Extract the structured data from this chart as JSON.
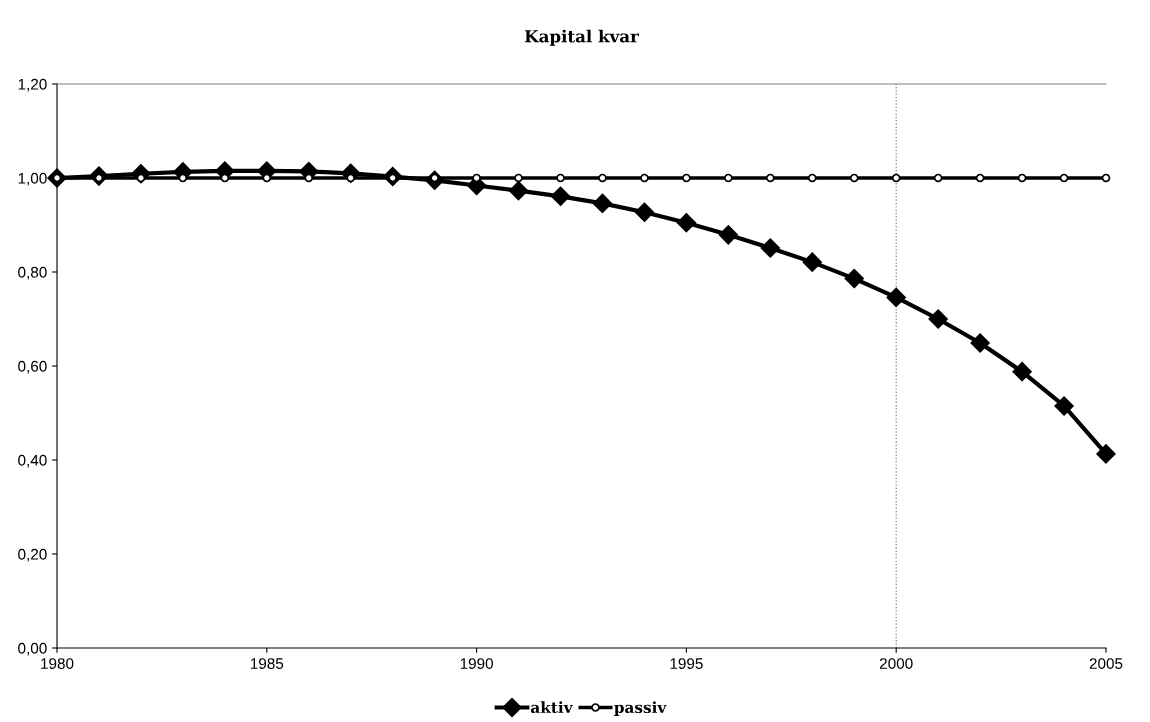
{
  "chart_data": {
    "type": "line",
    "title": "Kapital kvar",
    "x": [
      1980,
      1981,
      1982,
      1983,
      1984,
      1985,
      1986,
      1987,
      1988,
      1989,
      1990,
      1991,
      1992,
      1993,
      1994,
      1995,
      1996,
      1997,
      1998,
      1999,
      2000,
      2001,
      2002,
      2003,
      2004,
      2005
    ],
    "series": [
      {
        "name": "aktiv",
        "color": "#000000",
        "marker": "diamond",
        "values": [
          1.0,
          1.004,
          1.009,
          1.013,
          1.015,
          1.015,
          1.014,
          1.01,
          1.003,
          0.995,
          0.984,
          0.973,
          0.961,
          0.946,
          0.927,
          0.905,
          0.879,
          0.851,
          0.821,
          0.786,
          0.746,
          0.7,
          0.649,
          0.588,
          0.515,
          0.413
        ]
      },
      {
        "name": "passiv",
        "color": "#000000",
        "marker": "circle",
        "values": [
          1,
          1,
          1,
          1,
          1,
          1,
          1,
          1,
          1,
          1,
          1,
          1,
          1,
          1,
          1,
          1,
          1,
          1,
          1,
          1,
          1,
          1,
          1,
          1,
          1,
          1
        ]
      }
    ],
    "xlim": [
      1980,
      2005
    ],
    "xticks": [
      1980,
      1985,
      1990,
      1995,
      2000,
      2005
    ],
    "ylim": [
      0,
      1.2
    ],
    "yticks": [
      {
        "value": 0,
        "label": "0,00"
      },
      {
        "value": 0.2,
        "label": "0,20"
      },
      {
        "value": 0.4,
        "label": "0,40"
      },
      {
        "value": 0.6,
        "label": "0,60"
      },
      {
        "value": 0.8,
        "label": "0,80"
      },
      {
        "value": 1.0,
        "label": "1,00"
      },
      {
        "value": 1.2,
        "label": "1,20"
      }
    ],
    "ref_lines": [
      {
        "axis": "x",
        "value": 2000,
        "color": "#808080",
        "line_style": "dotted"
      }
    ],
    "grid": false,
    "legend": "bottom",
    "line_style": "solid"
  }
}
